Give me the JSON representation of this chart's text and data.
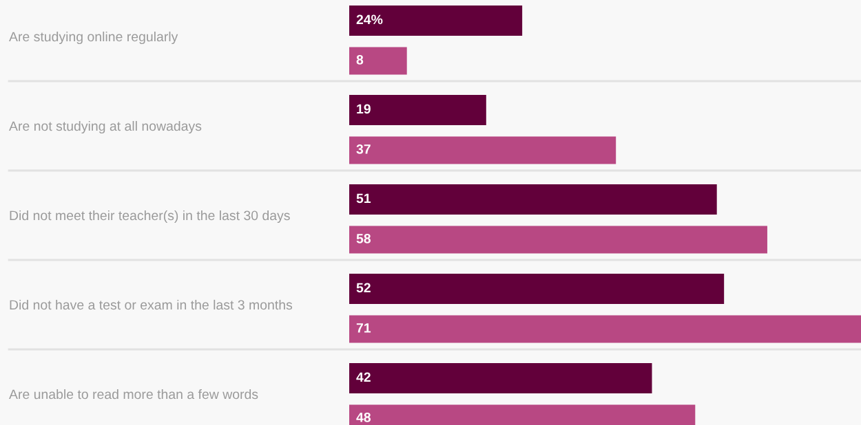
{
  "chart_data": {
    "type": "bar",
    "orientation": "horizontal",
    "relative": false,
    "categories": [
      "Are studying online regularly",
      "Are not studying at all nowadays",
      "Did not meet their teacher(s) in the last 30 days",
      "Did not have a test or exam in the last 3 months",
      "Are unable to read more than a few words"
    ],
    "series": [
      {
        "color": "#62003a",
        "values": [
          24,
          19,
          51,
          52,
          42
        ],
        "value_labels": [
          "24%",
          "19",
          "51",
          "52",
          "42"
        ]
      },
      {
        "color": "#b84883",
        "values": [
          8,
          37,
          58,
          71,
          48
        ],
        "value_labels": [
          "8",
          "37",
          "58",
          "71",
          "48"
        ]
      }
    ]
  }
}
